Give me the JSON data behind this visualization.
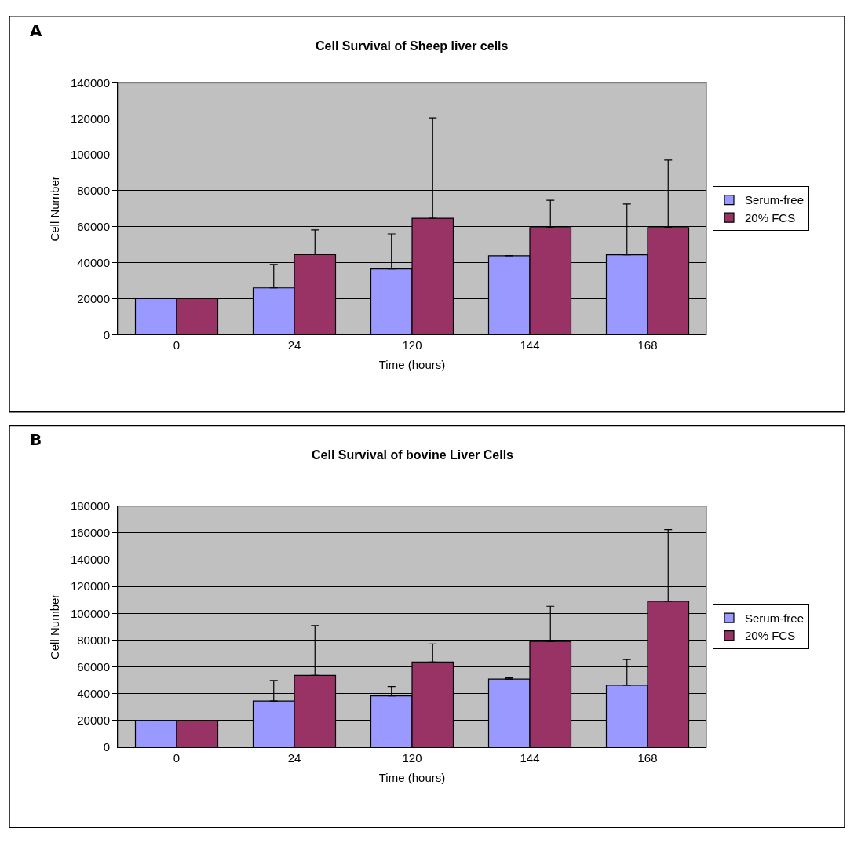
{
  "chart_data": [
    {
      "type": "bar",
      "title": "Cell Survival of Sheep liver cells",
      "xlabel": "Time (hours)",
      "ylabel": "Cell Number",
      "annotations": [
        "A"
      ],
      "categories": [
        "0",
        "24",
        "120",
        "144",
        "168"
      ],
      "series": [
        {
          "name": "Serum-free",
          "color": "#9999ff",
          "values": [
            20000,
            26000,
            36500,
            43800,
            44400
          ],
          "errors": [
            null,
            [
              26000,
              39000
            ],
            [
              36500,
              56000
            ],
            [
              43800,
              44000
            ],
            [
              44400,
              72600
            ]
          ]
        },
        {
          "name": "20% FCS",
          "color": "#993366",
          "values": [
            20000,
            44500,
            64700,
            59500,
            59500
          ],
          "errors": [
            null,
            [
              44500,
              58200
            ],
            [
              64700,
              120500
            ],
            [
              59500,
              74700
            ],
            [
              59500,
              97100
            ]
          ]
        }
      ],
      "ylim": [
        0,
        140000
      ],
      "yticks": [
        0,
        20000,
        40000,
        60000,
        80000,
        100000,
        120000,
        140000
      ],
      "grid": "y",
      "legend": "right"
    },
    {
      "type": "bar",
      "title": "Cell Survival of bovine Liver Cells",
      "xlabel": "Time (hours)",
      "ylabel": "Cell Number",
      "annotations": [
        "B"
      ],
      "categories": [
        "0",
        "24",
        "120",
        "144",
        "168"
      ],
      "series": [
        {
          "name": "Serum-free",
          "color": "#9999ff",
          "values": [
            20000,
            34500,
            38300,
            50900,
            46300
          ],
          "errors": [
            null,
            [
              34500,
              49900
            ],
            [
              38300,
              45300
            ],
            [
              50900,
              51800
            ],
            [
              46300,
              65500
            ]
          ]
        },
        {
          "name": "20% FCS",
          "color": "#993366",
          "values": [
            20000,
            53700,
            63600,
            79000,
            109000
          ],
          "errors": [
            null,
            [
              53700,
              90900
            ],
            [
              63600,
              77100
            ],
            [
              79000,
              105300
            ],
            [
              109000,
              162500
            ]
          ]
        }
      ],
      "ylim": [
        0,
        180000
      ],
      "yticks": [
        0,
        20000,
        40000,
        60000,
        80000,
        100000,
        120000,
        140000,
        160000,
        180000
      ],
      "grid": "y",
      "legend": "right"
    }
  ]
}
